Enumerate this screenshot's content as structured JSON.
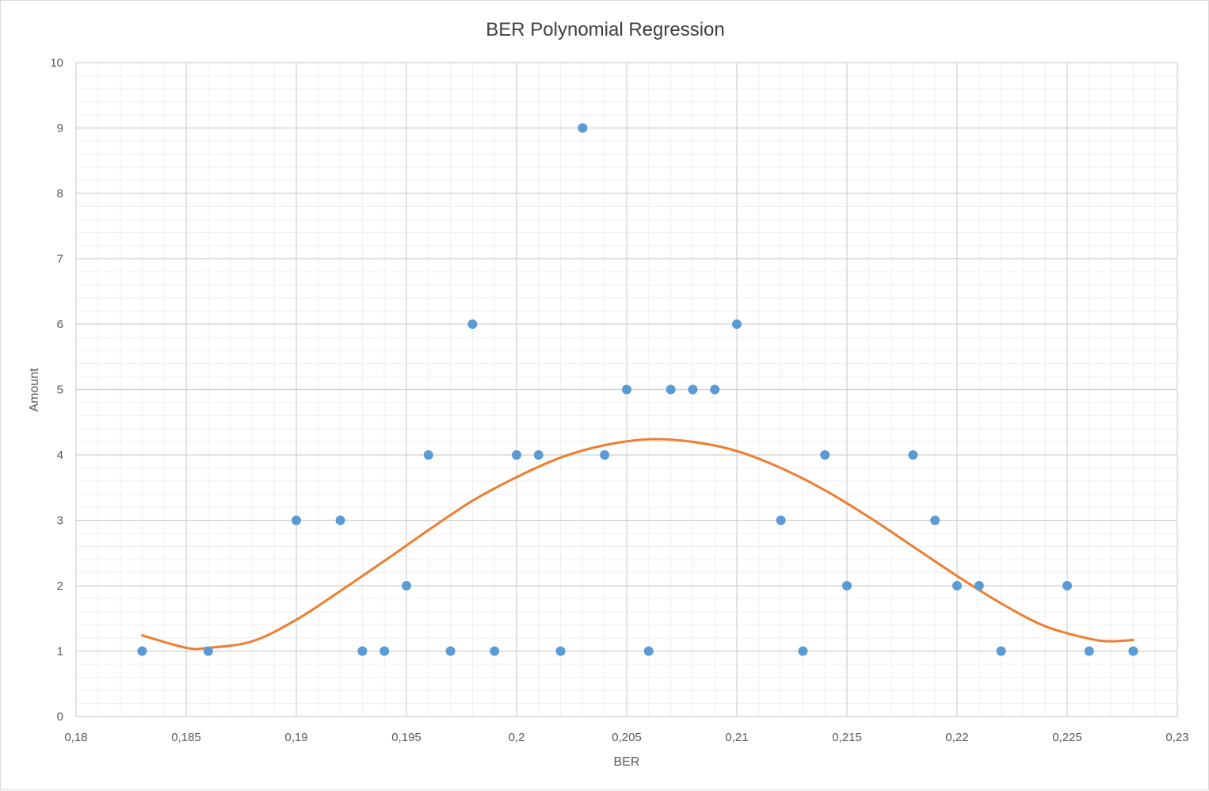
{
  "chart_data": {
    "type": "scatter",
    "title": "BER Polynomial Regression",
    "xlabel": "BER",
    "ylabel": "Amount",
    "xlim": [
      0.18,
      0.23
    ],
    "ylim": [
      0,
      10
    ],
    "x_ticks": [
      "0,18",
      "0,185",
      "0,19",
      "0,195",
      "0,2",
      "0,205",
      "0,21",
      "0,215",
      "0,22",
      "0,225",
      "0,23"
    ],
    "y_ticks": [
      "0",
      "1",
      "2",
      "3",
      "4",
      "5",
      "6",
      "7",
      "8",
      "9",
      "10"
    ],
    "grid": true,
    "legend": "none",
    "series": [
      {
        "type": "scatter",
        "color": "#5b9bd5",
        "points": [
          [
            0.183,
            1
          ],
          [
            0.186,
            1
          ],
          [
            0.19,
            3
          ],
          [
            0.192,
            3
          ],
          [
            0.193,
            1
          ],
          [
            0.194,
            1
          ],
          [
            0.195,
            2
          ],
          [
            0.196,
            4
          ],
          [
            0.197,
            1
          ],
          [
            0.198,
            6
          ],
          [
            0.199,
            1
          ],
          [
            0.2,
            4
          ],
          [
            0.201,
            4
          ],
          [
            0.202,
            1
          ],
          [
            0.203,
            9
          ],
          [
            0.204,
            4
          ],
          [
            0.205,
            5
          ],
          [
            0.206,
            1
          ],
          [
            0.207,
            5
          ],
          [
            0.208,
            5
          ],
          [
            0.209,
            5
          ],
          [
            0.21,
            6
          ],
          [
            0.212,
            3
          ],
          [
            0.213,
            1
          ],
          [
            0.214,
            4
          ],
          [
            0.215,
            2
          ],
          [
            0.218,
            4
          ],
          [
            0.219,
            3
          ],
          [
            0.22,
            2
          ],
          [
            0.221,
            2
          ],
          [
            0.222,
            1
          ],
          [
            0.225,
            2
          ],
          [
            0.226,
            1
          ],
          [
            0.228,
            1
          ]
        ]
      },
      {
        "type": "line",
        "color": "#ed7d31",
        "points": [
          [
            0.183,
            1.24
          ],
          [
            0.185,
            1.05
          ],
          [
            0.186,
            1.05
          ],
          [
            0.188,
            1.15
          ],
          [
            0.19,
            1.48
          ],
          [
            0.192,
            1.92
          ],
          [
            0.194,
            2.38
          ],
          [
            0.196,
            2.85
          ],
          [
            0.198,
            3.3
          ],
          [
            0.2,
            3.66
          ],
          [
            0.202,
            3.96
          ],
          [
            0.204,
            4.15
          ],
          [
            0.206,
            4.24
          ],
          [
            0.208,
            4.2
          ],
          [
            0.21,
            4.06
          ],
          [
            0.212,
            3.8
          ],
          [
            0.214,
            3.46
          ],
          [
            0.216,
            3.05
          ],
          [
            0.218,
            2.6
          ],
          [
            0.22,
            2.15
          ],
          [
            0.222,
            1.73
          ],
          [
            0.224,
            1.38
          ],
          [
            0.226,
            1.19
          ],
          [
            0.227,
            1.15
          ],
          [
            0.228,
            1.17
          ]
        ]
      }
    ]
  }
}
